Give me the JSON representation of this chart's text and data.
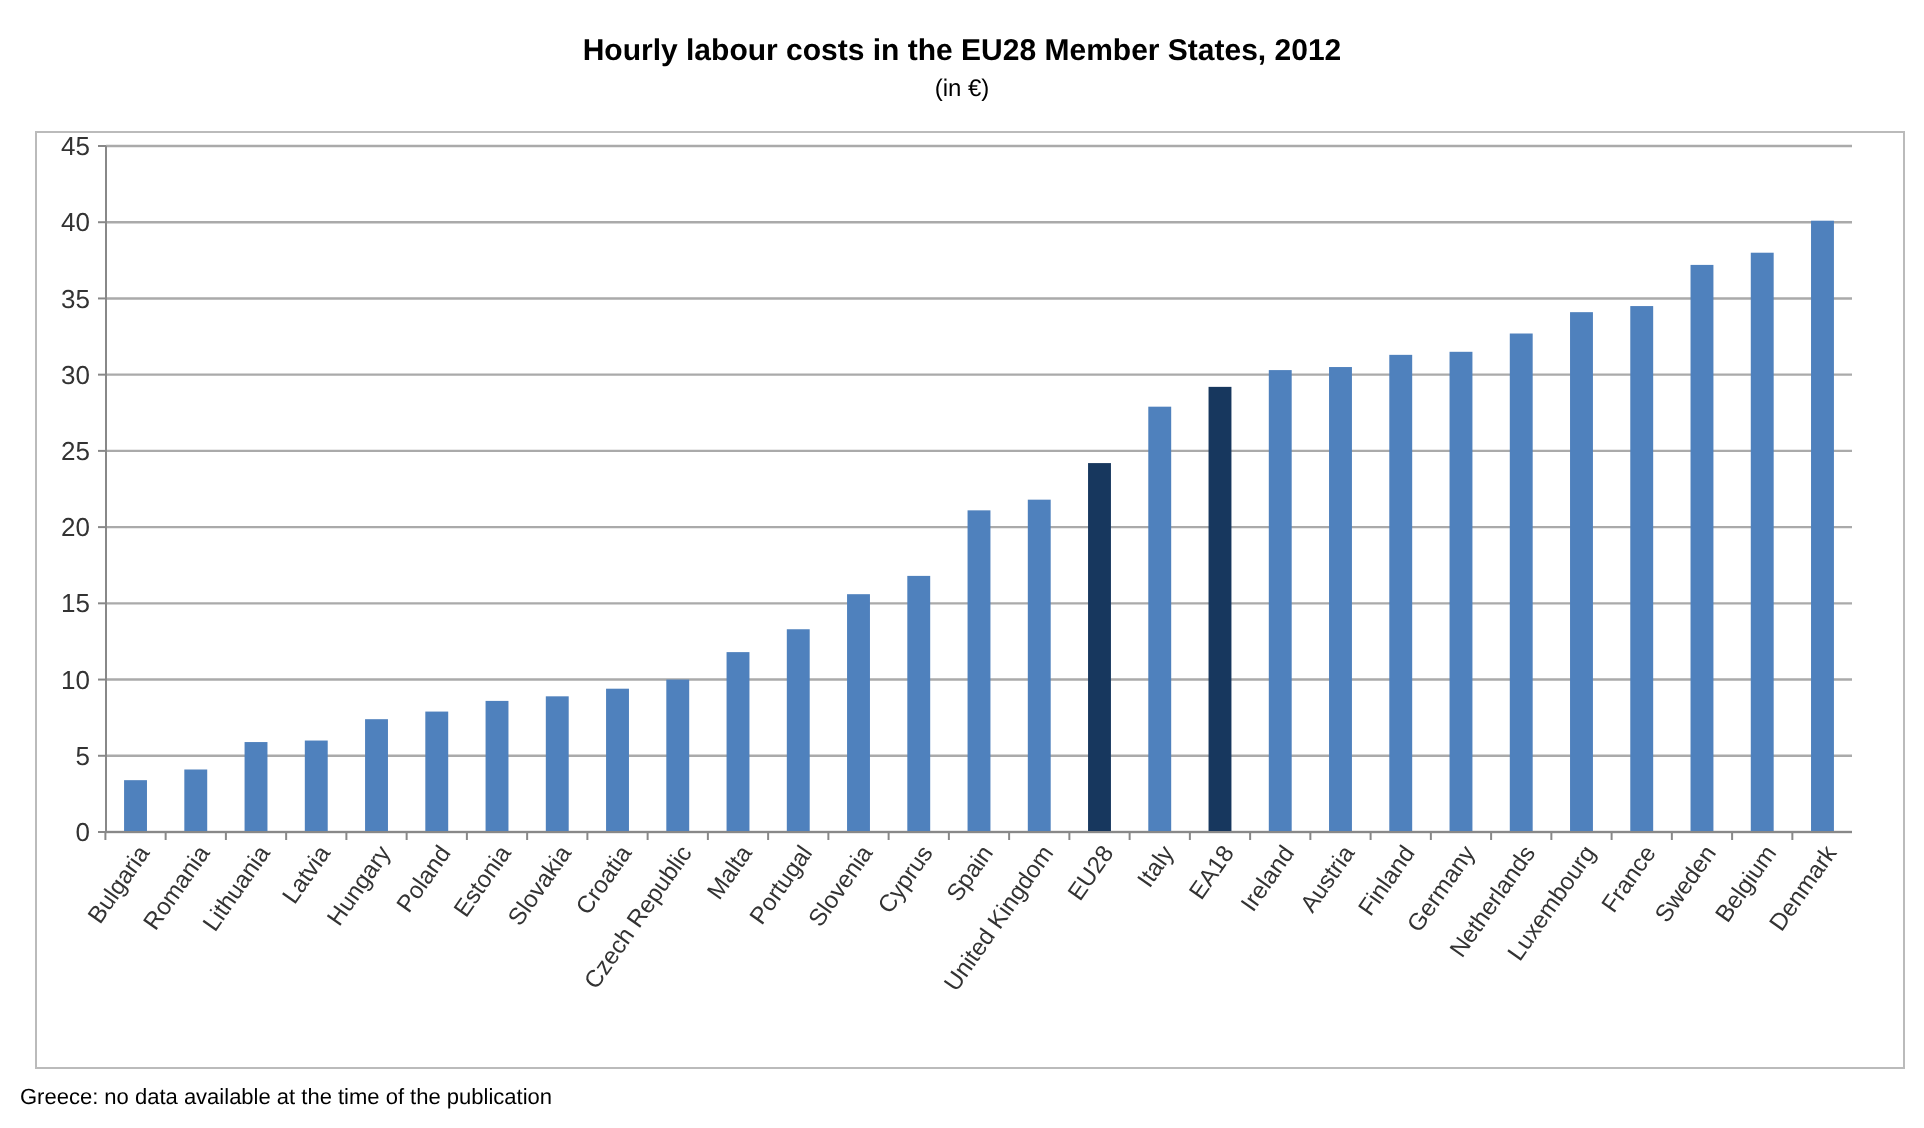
{
  "chart_data": {
    "type": "bar",
    "title": "Hourly labour costs in the EU28 Member States, 2012",
    "subtitle": "(in €)",
    "categories": [
      "Bulgaria",
      "Romania",
      "Lithuania",
      "Latvia",
      "Hungary",
      "Poland",
      "Estonia",
      "Slovakia",
      "Croatia",
      "Czech Republic",
      "Malta",
      "Portugal",
      "Slovenia",
      "Cyprus",
      "Spain",
      "United Kingdom",
      "EU28",
      "Italy",
      "EA18",
      "Ireland",
      "Austria",
      "Finland",
      "Germany",
      "Netherlands",
      "Luxembourg",
      "France",
      "Sweden",
      "Belgium",
      "Denmark"
    ],
    "values": [
      3.4,
      4.1,
      5.9,
      6.0,
      7.4,
      7.9,
      8.6,
      8.9,
      9.4,
      10.0,
      11.8,
      13.3,
      15.6,
      16.8,
      21.1,
      21.8,
      24.2,
      27.9,
      29.2,
      30.3,
      30.5,
      31.3,
      31.5,
      32.7,
      34.1,
      34.5,
      37.2,
      38.0,
      40.1
    ],
    "colors": [
      "#4f81bd",
      "#4f81bd",
      "#4f81bd",
      "#4f81bd",
      "#4f81bd",
      "#4f81bd",
      "#4f81bd",
      "#4f81bd",
      "#4f81bd",
      "#4f81bd",
      "#4f81bd",
      "#4f81bd",
      "#4f81bd",
      "#4f81bd",
      "#4f81bd",
      "#4f81bd",
      "#17375e",
      "#4f81bd",
      "#17375e",
      "#4f81bd",
      "#4f81bd",
      "#4f81bd",
      "#4f81bd",
      "#4f81bd",
      "#4f81bd",
      "#4f81bd",
      "#4f81bd",
      "#4f81bd",
      "#4f81bd"
    ],
    "ylim": [
      0,
      45
    ],
    "yticks": [
      0,
      5,
      10,
      15,
      20,
      25,
      30,
      35,
      40,
      45
    ],
    "grid": "y",
    "annotations": [
      "Greece: no data available at the time of the publication"
    ]
  }
}
